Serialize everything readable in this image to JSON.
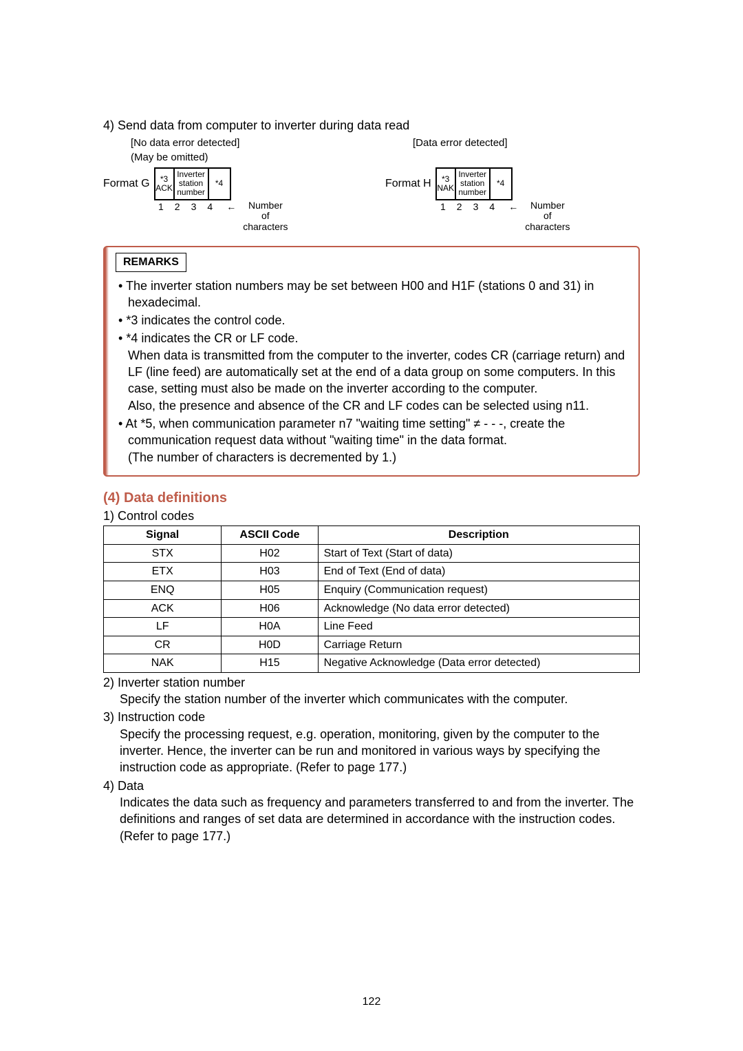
{
  "heading": "4) Send data from computer to inverter during data read",
  "diagram": {
    "left": {
      "caption1": "[No data error detected]",
      "caption2": "(May be omitted)",
      "format_label": "Format G",
      "cells": [
        "*3\nACK",
        "Inverter\nstation\nnumber",
        "*4"
      ],
      "nums": [
        "1",
        "2",
        "3",
        "4"
      ],
      "arrow": "←",
      "noc": "Number\nof\ncharacters"
    },
    "right": {
      "caption1": "[Data error detected]",
      "format_label": "Format H",
      "cells": [
        "*3\nNAK",
        "Inverter\nstation\nnumber",
        "*4"
      ],
      "nums": [
        "1",
        "2",
        "3",
        "4"
      ],
      "arrow": "←",
      "noc": "Number\nof\ncharacters"
    }
  },
  "remarks": {
    "title": "REMARKS",
    "items": [
      "The inverter station numbers may be set between H00 and H1F (stations 0 and 31) in hexadecimal.",
      "*3 indicates the control code.",
      "*4 indicates the CR or LF code.\nWhen data is transmitted from the computer to the inverter, codes CR (carriage return) and LF (line feed) are automatically set at the end of a data group on some computers. In this case, setting must also be made on the inverter according to the computer.\nAlso, the presence and absence of the CR and LF codes can be selected using n11.",
      "At *5, when communication parameter n7 \"waiting time setting\" ≠ - - -, create the communication request data without \"waiting time\" in the data format.\n(The number of characters is decremented by 1.)"
    ]
  },
  "section4": {
    "title": "(4) Data definitions",
    "sub1": "1) Control codes",
    "table": {
      "headers": [
        "Signal",
        "ASCII Code",
        "Description"
      ],
      "rows": [
        [
          "STX",
          "H02",
          "Start of Text (Start of data)"
        ],
        [
          "ETX",
          "H03",
          "End of Text (End of data)"
        ],
        [
          "ENQ",
          "H05",
          "Enquiry (Communication request)"
        ],
        [
          "ACK",
          "H06",
          "Acknowledge (No data error detected)"
        ],
        [
          "LF",
          "H0A",
          "Line Feed"
        ],
        [
          "CR",
          "H0D",
          "Carriage Return"
        ],
        [
          "NAK",
          "H15",
          "Negative Acknowledge (Data error detected)"
        ]
      ]
    },
    "sub2_head": "2) Inverter station number",
    "sub2_body": "Specify the station number of the inverter which communicates with the computer.",
    "sub3_head": "3) Instruction code",
    "sub3_body": "Specify the processing request, e.g. operation, monitoring, given by the computer to the inverter. Hence, the inverter can be run and monitored in various ways by specifying the instruction code as appropriate. (Refer to page 177.)",
    "sub4_head": "4) Data",
    "sub4_body": "Indicates the data such as frequency and parameters transferred to and from the inverter. The definitions and ranges of set data are determined in accordance with the instruction codes. (Refer to page 177.)"
  },
  "page_number": "122",
  "colors": {
    "accent": "#bf5c4a",
    "text": "#000000",
    "background": "#ffffff",
    "border": "#000000"
  },
  "typography": {
    "body_fontsize": 18,
    "small_fontsize": 14,
    "title_fontsize": 20
  }
}
